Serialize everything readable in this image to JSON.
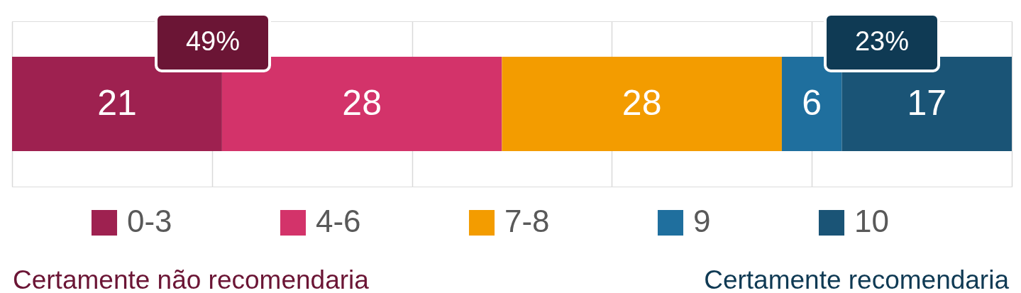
{
  "chart_data": {
    "type": "bar",
    "orientation": "horizontal",
    "stacked": true,
    "categories": [
      null
    ],
    "series": [
      {
        "name": "0-3",
        "color": "#9e2150",
        "values": [
          21
        ]
      },
      {
        "name": "4-6",
        "color": "#d3336a",
        "values": [
          28
        ]
      },
      {
        "name": "7-8",
        "color": "#f39c00",
        "values": [
          28
        ]
      },
      {
        "name": "9",
        "color": "#1f6f9e",
        "values": [
          6
        ]
      },
      {
        "name": "10",
        "color": "#1a5476",
        "values": [
          17
        ]
      }
    ],
    "xlim": [
      0,
      100
    ],
    "xticks": [
      {
        "value": 0,
        "label": null
      },
      {
        "value": 20,
        "label": null
      },
      {
        "value": 40,
        "label": null
      },
      {
        "value": 60,
        "label": null
      },
      {
        "value": 80,
        "label": null
      },
      {
        "value": 100,
        "label": null
      }
    ],
    "tick_labels": false,
    "grid": "x",
    "legend": "bottom",
    "data_labels": true,
    "annotations": [
      "49%",
      "23%",
      "Certamente não recomendaria",
      "Certamente recomendaria"
    ]
  }
}
